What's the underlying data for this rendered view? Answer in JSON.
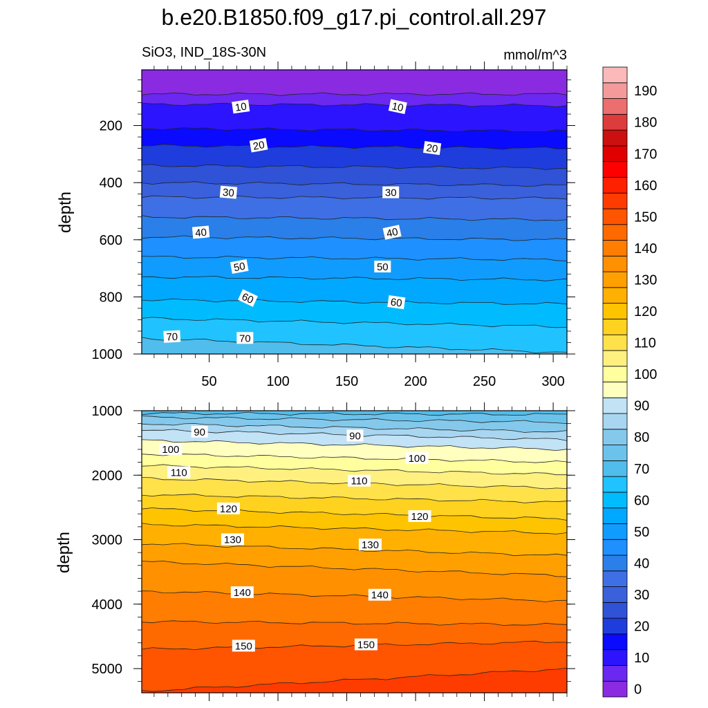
{
  "chart_data": {
    "type": "heatmap",
    "title": "b.e20.B1850.f09_g17.pi_control.all.297",
    "left_subtitle": "SiO3, IND_18S-30N",
    "right_subtitle": "mmol/m^3",
    "colorbar": {
      "levels": [
        0,
        5,
        10,
        15,
        20,
        25,
        30,
        35,
        40,
        45,
        50,
        55,
        60,
        65,
        70,
        75,
        80,
        85,
        90,
        95,
        100,
        105,
        110,
        115,
        120,
        125,
        130,
        135,
        140,
        145,
        150,
        155,
        160,
        165,
        170,
        175,
        180,
        185,
        190,
        195
      ],
      "labels": [
        "0",
        "10",
        "20",
        "30",
        "40",
        "50",
        "60",
        "70",
        "80",
        "90",
        "100",
        "110",
        "120",
        "130",
        "140",
        "150",
        "160",
        "170",
        "180",
        "190"
      ],
      "colors": [
        "#8a2be2",
        "#6a28f0",
        "#2d14ff",
        "#0a0aff",
        "#1e3ddc",
        "#2f52d6",
        "#3a60dc",
        "#3f6fe4",
        "#2a7fe8",
        "#1e90ff",
        "#109cff",
        "#00a8ff",
        "#00bcff",
        "#20c3ff",
        "#50bdec",
        "#6bc3ec",
        "#84c9ec",
        "#a8d6f0",
        "#c2e2f5",
        "#ffffc0",
        "#ffff9e",
        "#fff080",
        "#ffe14a",
        "#ffd21f",
        "#ffc400",
        "#ffb000",
        "#ffa000",
        "#ff9000",
        "#ff7d00",
        "#ff6a00",
        "#ff5400",
        "#ff3c00",
        "#ff2000",
        "#ff0000",
        "#e00000",
        "#cc0f0f",
        "#dd3c3c",
        "#ec6e6e",
        "#f59a9a",
        "#fcb9b9"
      ]
    },
    "x_axis": {
      "ticks": [
        50,
        100,
        150,
        200,
        250,
        300
      ],
      "tick_labels": [
        "50",
        "100",
        "150",
        "200",
        "250",
        "300"
      ],
      "xlim": [
        1,
        310
      ]
    },
    "panels": [
      {
        "ylabel": "depth",
        "ylim": [
          5,
          1000
        ],
        "y_ticks": [
          200,
          400,
          600,
          800,
          1000
        ],
        "y_tick_labels": [
          "200",
          "400",
          "600",
          "800",
          "1000"
        ],
        "levels": [
          5,
          10,
          15,
          20,
          25,
          30,
          35,
          40,
          45,
          50,
          55,
          60,
          65,
          70
        ],
        "contours": [
          {
            "level": 5,
            "depth_start": 90,
            "depth_end": 90
          },
          {
            "level": 10,
            "depth_start": 125,
            "depth_end": 130
          },
          {
            "level": 15,
            "depth_start": 210,
            "depth_end": 220
          },
          {
            "level": 20,
            "depth_start": 270,
            "depth_end": 280
          },
          {
            "level": 25,
            "depth_start": 340,
            "depth_end": 350
          },
          {
            "level": 30,
            "depth_start": 400,
            "depth_end": 410
          },
          {
            "level": 35,
            "depth_start": 450,
            "depth_end": 455
          },
          {
            "level": 40,
            "depth_start": 520,
            "depth_end": 530
          },
          {
            "level": 45,
            "depth_start": 590,
            "depth_end": 600
          },
          {
            "level": 50,
            "depth_start": 660,
            "depth_end": 670
          },
          {
            "level": 55,
            "depth_start": 730,
            "depth_end": 740
          },
          {
            "level": 60,
            "depth_start": 810,
            "depth_end": 825
          },
          {
            "level": 65,
            "depth_start": 875,
            "depth_end": 905
          },
          {
            "level": 70,
            "depth_start": 945,
            "depth_end": 995
          }
        ],
        "line_labels": [
          {
            "text": "10",
            "x": 73,
            "depth": 135,
            "angle": -8
          },
          {
            "text": "10",
            "x": 187,
            "depth": 135,
            "angle": 12
          },
          {
            "text": "20",
            "x": 86,
            "depth": 270,
            "angle": -10
          },
          {
            "text": "20",
            "x": 212,
            "depth": 280,
            "angle": 8
          },
          {
            "text": "30",
            "x": 64,
            "depth": 435,
            "angle": 5
          },
          {
            "text": "30",
            "x": 182,
            "depth": 435,
            "angle": 0
          },
          {
            "text": "40",
            "x": 44,
            "depth": 575,
            "angle": -5
          },
          {
            "text": "40",
            "x": 183,
            "depth": 575,
            "angle": -12
          },
          {
            "text": "50",
            "x": 72,
            "depth": 695,
            "angle": -10
          },
          {
            "text": "50",
            "x": 176,
            "depth": 695,
            "angle": 0
          },
          {
            "text": "60",
            "x": 78,
            "depth": 805,
            "angle": 25
          },
          {
            "text": "60",
            "x": 186,
            "depth": 820,
            "angle": 8
          },
          {
            "text": "70",
            "x": 23,
            "depth": 940,
            "angle": -3
          },
          {
            "text": "70",
            "x": 76,
            "depth": 945,
            "angle": 0
          }
        ]
      },
      {
        "ylabel": "depth",
        "ylim": [
          1000,
          5375
        ],
        "y_ticks": [
          1000,
          2000,
          3000,
          4000,
          5000
        ],
        "y_tick_labels": [
          "1000",
          "2000",
          "3000",
          "4000",
          "5000"
        ],
        "levels": [
          75,
          80,
          85,
          90,
          95,
          100,
          105,
          110,
          115,
          120,
          125,
          130,
          135,
          140,
          145,
          150,
          155
        ],
        "contours": [
          {
            "level": 75,
            "depth_start": 1040,
            "depth_end": 1060
          },
          {
            "level": 80,
            "depth_start": 1100,
            "depth_end": 1180
          },
          {
            "level": 85,
            "depth_start": 1200,
            "depth_end": 1330
          },
          {
            "level": 90,
            "depth_start": 1300,
            "depth_end": 1450
          },
          {
            "level": 95,
            "depth_start": 1460,
            "depth_end": 1600
          },
          {
            "level": 100,
            "depth_start": 1670,
            "depth_end": 1800
          },
          {
            "level": 105,
            "depth_start": 1850,
            "depth_end": 1990
          },
          {
            "level": 110,
            "depth_start": 2050,
            "depth_end": 2200
          },
          {
            "level": 115,
            "depth_start": 2300,
            "depth_end": 2420
          },
          {
            "level": 120,
            "depth_start": 2520,
            "depth_end": 2680
          },
          {
            "level": 125,
            "depth_start": 2760,
            "depth_end": 2900
          },
          {
            "level": 130,
            "depth_start": 3060,
            "depth_end": 3250
          },
          {
            "level": 135,
            "depth_start": 3340,
            "depth_end": 3560
          },
          {
            "level": 140,
            "depth_start": 3800,
            "depth_end": 3950
          },
          {
            "level": 145,
            "depth_start": 4270,
            "depth_end": 4320
          },
          {
            "level": 150,
            "depth_start": 4700,
            "depth_end": 4580
          },
          {
            "level": 155,
            "depth_start": 5350,
            "depth_end": 5000
          }
        ],
        "line_labels": [
          {
            "text": "90",
            "x": 43,
            "depth": 1330,
            "angle": 0
          },
          {
            "text": "90",
            "x": 156,
            "depth": 1390,
            "angle": 0
          },
          {
            "text": "100",
            "x": 22,
            "depth": 1600,
            "angle": 0
          },
          {
            "text": "100",
            "x": 201,
            "depth": 1740,
            "angle": 0
          },
          {
            "text": "110",
            "x": 28,
            "depth": 1960,
            "angle": 0
          },
          {
            "text": "110",
            "x": 159,
            "depth": 2090,
            "angle": 0
          },
          {
            "text": "120",
            "x": 64,
            "depth": 2520,
            "angle": 0
          },
          {
            "text": "120",
            "x": 203,
            "depth": 2640,
            "angle": 0
          },
          {
            "text": "130",
            "x": 67,
            "depth": 3000,
            "angle": 0
          },
          {
            "text": "130",
            "x": 167,
            "depth": 3080,
            "angle": 0
          },
          {
            "text": "140",
            "x": 74,
            "depth": 3820,
            "angle": 0
          },
          {
            "text": "140",
            "x": 174,
            "depth": 3860,
            "angle": 0
          },
          {
            "text": "150",
            "x": 75,
            "depth": 4650,
            "angle": 0
          },
          {
            "text": "150",
            "x": 164,
            "depth": 4630,
            "angle": 0
          }
        ]
      }
    ]
  }
}
